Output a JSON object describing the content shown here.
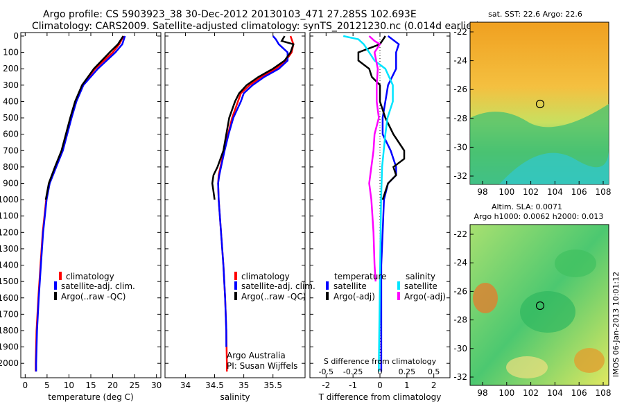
{
  "header": {
    "line1": "Argo profile: CS 5903923_38 30-Dec-2012 20130103_471 27.285S 102.693E",
    "line2": "Climatology: CARS2009. Satellite-adjusted climatology: synTS_20121230.nc (0.014d earlier)"
  },
  "colors": {
    "climatology": "#ff0000",
    "satellite": "#0000ff",
    "argo": "#000000",
    "sal_satellite": "#00e5ff",
    "sal_argo": "#ff00ff"
  },
  "y_axis": {
    "ticks": [
      0,
      100,
      200,
      300,
      400,
      500,
      600,
      700,
      800,
      900,
      1000,
      1100,
      1200,
      1300,
      1400,
      1500,
      1600,
      1700,
      1800,
      1900,
      2000
    ],
    "range": [
      0,
      2080
    ]
  },
  "temperature_panel": {
    "xlabel": "temperature (deg C)",
    "xticks": [
      0,
      5,
      10,
      15,
      20,
      25,
      30
    ],
    "legend": [
      "climatology",
      "satellite-adj. clim.",
      "Argo(..raw -QC)"
    ]
  },
  "salinity_panel": {
    "xlabel": "salinity",
    "xticks": [
      34,
      34.5,
      35,
      35.5
    ],
    "legend": [
      "climatology",
      "satellite-adj. clim.",
      "Argo(..raw -QC)"
    ],
    "note1": "Argo Australia",
    "note2": "PI: Susan Wijffels"
  },
  "diff_panel": {
    "xlabel": "T difference from climatology",
    "top_label": "S difference from climatology",
    "xticks_T": [
      -2,
      -1,
      0,
      1,
      2
    ],
    "xticks_S": [
      "-0.5",
      "-0.25",
      "0",
      "0.25",
      "0.5"
    ],
    "legend_temp_title": "temperature",
    "legend_sal_title": "salinity",
    "legend_temp": [
      "satellite",
      "Argo(-adj)"
    ],
    "legend_sal": [
      "satellite",
      "Argo(-adj)"
    ]
  },
  "sst_map": {
    "title": "sat. SST: 22.6  Argo: 22.6",
    "yticks": [
      -22,
      -24,
      -26,
      -28,
      -30,
      -32
    ],
    "xticks": [
      98,
      100,
      102,
      104,
      106,
      108
    ]
  },
  "sla_map": {
    "title1": "Altim. SLA: 0.0071",
    "title2": "Argo h1000: 0.0062 h2000: 0.013",
    "yticks": [
      -22,
      -24,
      -26,
      -28,
      -30,
      -32
    ],
    "xticks": [
      98,
      100,
      102,
      104,
      106,
      108
    ],
    "side_label": "IMOS 06-Jan-2013 10:01:12"
  },
  "chart_data": [
    {
      "type": "line",
      "title": "",
      "xlabel": "temperature (deg C)",
      "ylabel": "",
      "xlim": [
        -1,
        31
      ],
      "ylim": [
        2080,
        0
      ],
      "series": [
        {
          "name": "climatology",
          "depth": [
            0,
            50,
            100,
            200,
            300,
            400,
            500,
            600,
            700,
            800,
            900,
            1000,
            1200,
            1400,
            1600,
            1800,
            2000,
            2050
          ],
          "values": [
            22.5,
            21.5,
            20.0,
            16.0,
            13.0,
            11.5,
            10.5,
            9.5,
            8.5,
            7.0,
            5.5,
            4.8,
            4.0,
            3.5,
            3.0,
            2.6,
            2.4,
            2.4
          ]
        },
        {
          "name": "satellite-adj. clim.",
          "depth": [
            0,
            50,
            100,
            200,
            300,
            400,
            500,
            600,
            700,
            800,
            900,
            1000,
            1200,
            1400,
            1600,
            1800,
            2000,
            2050
          ],
          "values": [
            22.8,
            22.2,
            20.6,
            16.6,
            13.3,
            11.7,
            10.6,
            9.6,
            8.6,
            7.1,
            5.6,
            4.9,
            4.1,
            3.6,
            3.1,
            2.7,
            2.5,
            2.5
          ]
        },
        {
          "name": "Argo(..raw -QC)",
          "depth": [
            0,
            50,
            100,
            200,
            300,
            400,
            500,
            600,
            700,
            800,
            900,
            1000
          ],
          "values": [
            22.4,
            21.2,
            19.3,
            15.7,
            13.0,
            11.4,
            10.3,
            9.3,
            8.3,
            6.8,
            5.4,
            4.7
          ]
        }
      ]
    },
    {
      "type": "line",
      "title": "",
      "xlabel": "salinity",
      "ylabel": "",
      "xlim": [
        33.65,
        36.05
      ],
      "ylim": [
        2080,
        0
      ],
      "series": [
        {
          "name": "climatology",
          "depth": [
            0,
            50,
            100,
            150,
            200,
            250,
            300,
            350,
            400,
            500,
            600,
            700,
            800,
            850,
            900,
            1000,
            1200,
            1400,
            1600,
            1800,
            2000,
            2050
          ],
          "values": [
            35.8,
            35.85,
            35.82,
            35.72,
            35.55,
            35.3,
            35.1,
            34.95,
            34.9,
            34.8,
            34.73,
            34.66,
            34.6,
            34.57,
            34.56,
            34.57,
            34.61,
            34.65,
            34.68,
            34.7,
            34.71,
            34.71
          ]
        },
        {
          "name": "satellite-adj. clim.",
          "depth": [
            0,
            20,
            50,
            100,
            150,
            200,
            250,
            300,
            350,
            400,
            500,
            600,
            700,
            800,
            850,
            900,
            1000,
            1200,
            1400,
            1600,
            1800,
            1900
          ],
          "values": [
            35.5,
            35.55,
            35.6,
            35.75,
            35.75,
            35.6,
            35.35,
            35.15,
            35.0,
            34.95,
            34.82,
            34.74,
            34.67,
            34.61,
            34.58,
            34.56,
            34.57,
            34.61,
            34.65,
            34.68,
            34.7,
            34.7
          ]
        },
        {
          "name": "Argo(..raw -QC)",
          "depth": [
            0,
            30,
            50,
            100,
            150,
            200,
            250,
            300,
            350,
            400,
            500,
            600,
            700,
            800,
            850,
            900,
            950,
            1000
          ],
          "values": [
            35.7,
            35.65,
            35.85,
            35.8,
            35.7,
            35.5,
            35.25,
            35.05,
            34.92,
            34.85,
            34.75,
            34.7,
            34.65,
            34.55,
            34.48,
            34.46,
            34.48,
            34.5
          ]
        }
      ]
    },
    {
      "type": "line",
      "title": "",
      "xlabel": "T difference from climatology",
      "ylabel": "",
      "xlim": [
        -2.6,
        2.6
      ],
      "ylim": [
        2080,
        0
      ],
      "series": [
        {
          "name": "temperature satellite",
          "depth": [
            0,
            50,
            100,
            200,
            300,
            400,
            500,
            600,
            700,
            800,
            850,
            900,
            1000,
            1200,
            1400,
            1600,
            1800,
            2000,
            2050
          ],
          "values": [
            0.3,
            0.7,
            0.6,
            0.6,
            0.3,
            0.2,
            0.1,
            0.1,
            0.4,
            0.6,
            0.6,
            0.3,
            0.15,
            0.1,
            0.05,
            0.05,
            0.05,
            0.05,
            0.05
          ]
        },
        {
          "name": "temperature Argo(-adj)",
          "depth": [
            0,
            50,
            100,
            150,
            200,
            250,
            300,
            400,
            500,
            600,
            650,
            700,
            750,
            800,
            850,
            900,
            950,
            1000
          ],
          "values": [
            0.2,
            0.0,
            -0.8,
            -0.8,
            -0.4,
            -0.3,
            0.0,
            0.0,
            0.2,
            0.5,
            0.7,
            0.9,
            0.9,
            0.5,
            0.6,
            0.3,
            0.2,
            0.1
          ]
        },
        {
          "name": "salinity satellite",
          "depth": [
            0,
            20,
            50,
            100,
            150,
            200,
            300,
            400,
            500,
            600,
            800,
            1000,
            1500,
            2000,
            2050
          ],
          "values": [
            -0.34,
            -0.2,
            -0.15,
            -0.1,
            -0.05,
            0.05,
            0.12,
            0.12,
            0.07,
            0.05,
            0.02,
            0.01,
            0.0,
            -0.01,
            -0.01
          ]
        },
        {
          "name": "salinity Argo(-adj)",
          "depth": [
            0,
            30,
            50,
            100,
            200,
            300,
            400,
            500,
            600,
            700,
            800,
            900,
            1000,
            1200,
            1400,
            1500
          ],
          "values": [
            -0.1,
            -0.05,
            0.0,
            -0.05,
            -0.02,
            -0.03,
            -0.03,
            -0.01,
            -0.05,
            -0.06,
            -0.08,
            -0.1,
            -0.08,
            -0.06,
            -0.05,
            -0.04
          ]
        }
      ]
    }
  ]
}
